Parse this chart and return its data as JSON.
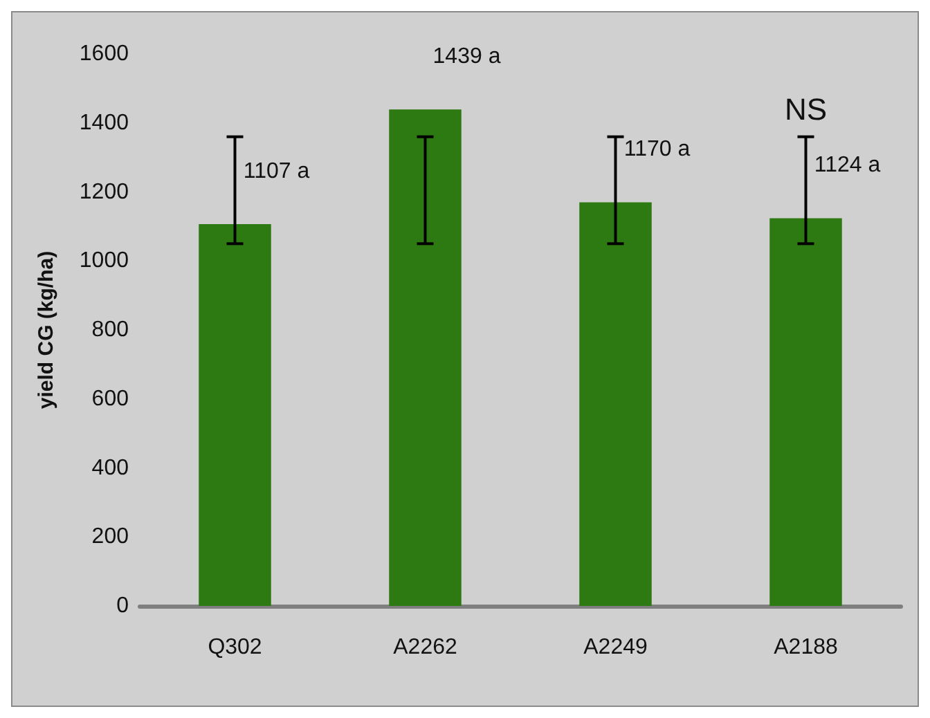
{
  "chart_data": {
    "type": "bar",
    "ylabel": "yield CG (kg/ha)",
    "categories": [
      "Q302",
      "A2262",
      "A2249",
      "A2188"
    ],
    "values": [
      1107,
      1439,
      1170,
      1124
    ],
    "value_labels": [
      "1107 a",
      "1439 a",
      "1170 a",
      "1124 a"
    ],
    "errors": [
      [
        1050,
        1360
      ],
      [
        1050,
        1360
      ],
      [
        1050,
        1360
      ],
      [
        1050,
        1360
      ]
    ],
    "color": "#2e7a12",
    "ylim": [
      0,
      1600
    ],
    "yticks": [
      0,
      200,
      400,
      600,
      800,
      1000,
      1200,
      1400,
      1600
    ],
    "annotations": [
      "NS"
    ],
    "grid": false
  }
}
